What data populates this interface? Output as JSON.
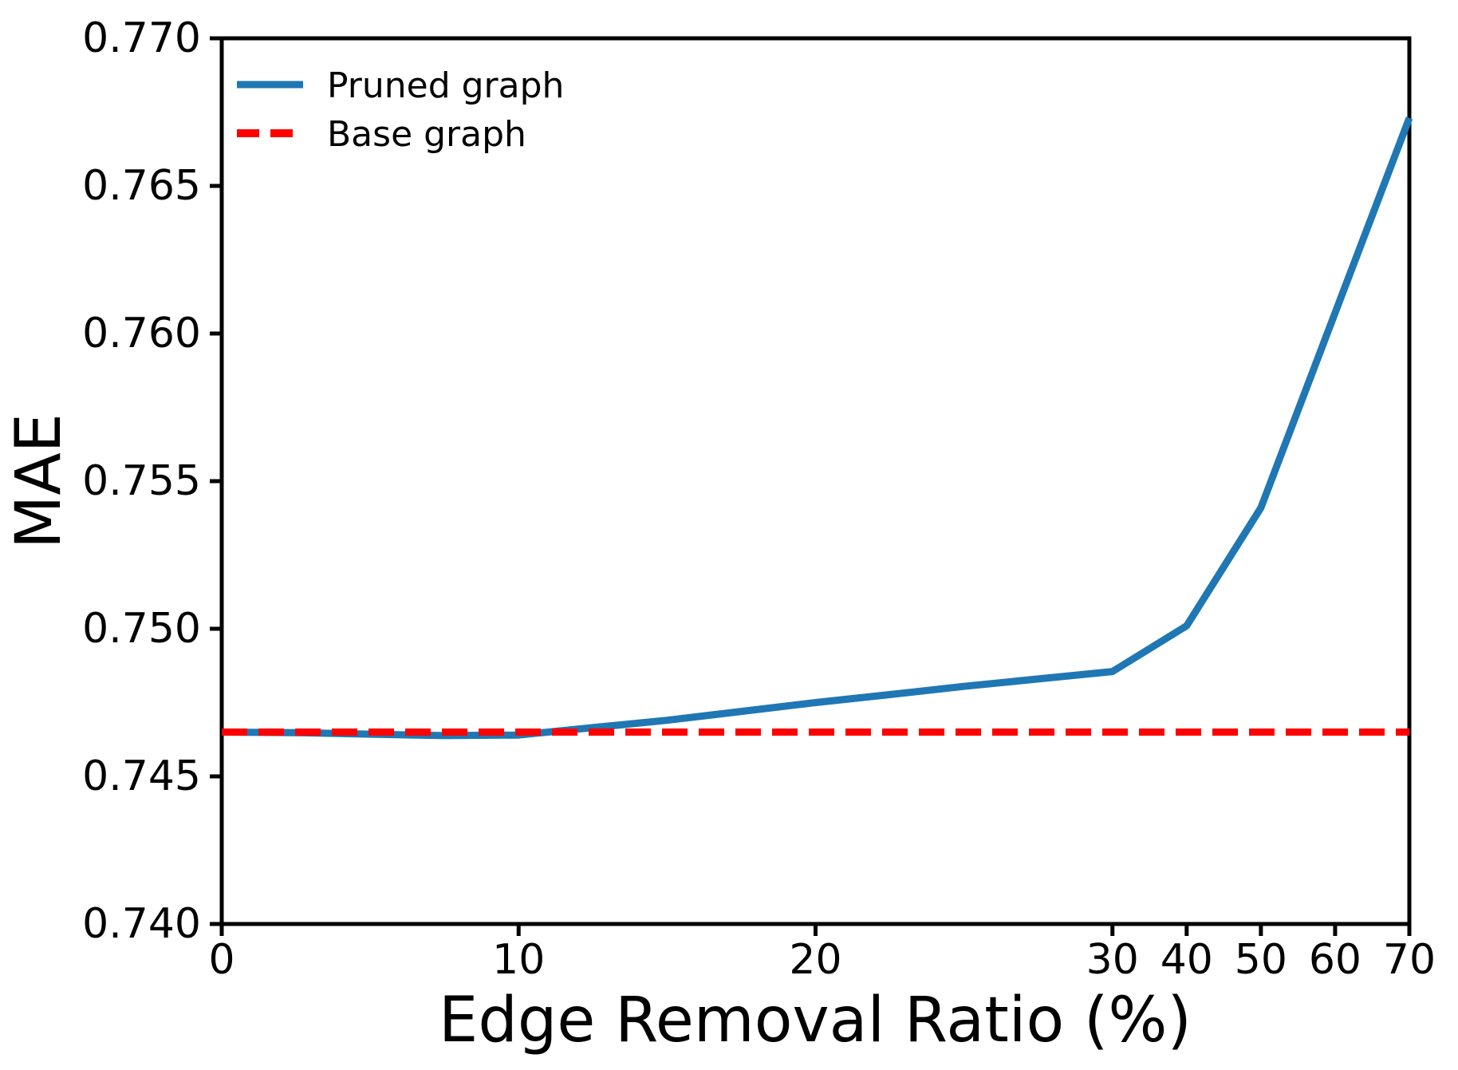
{
  "figure": {
    "background": "#ffffff",
    "text_color": "#000000"
  },
  "chart_data": {
    "type": "line",
    "title": "",
    "xlabel": "Edge Removal Ratio (%)",
    "ylabel": "MAE",
    "ylim": [
      0.74,
      0.77
    ],
    "grid": false,
    "legend_position": "upper left",
    "x_axis_note": "Non-linear x spacing: data points plotted at equal index intervals; ratios 0-30 sampled every 2.5, then 40, 50, 60, 70, so the 30-70 region is compressed.",
    "x_values": [
      0,
      2.5,
      5,
      7.5,
      10,
      12.5,
      15,
      17.5,
      20,
      22.5,
      25,
      27.5,
      30,
      40,
      50,
      60,
      70
    ],
    "series": [
      {
        "name": "Pruned graph",
        "color": "#1f77b4",
        "line_style": "solid",
        "values": [
          0.7465,
          0.74648,
          0.74643,
          0.74638,
          0.7464,
          0.74665,
          0.7469,
          0.7472,
          0.7475,
          0.74777,
          0.74805,
          0.7483,
          0.74855,
          0.7501,
          0.7541,
          0.7607,
          0.7673
        ]
      },
      {
        "name": "Base graph",
        "color": "#ff0000",
        "line_style": "dashed",
        "constant_value": 0.7465
      }
    ],
    "xticks": {
      "labels": [
        "0",
        "10",
        "20",
        "30",
        "40",
        "50",
        "60",
        "70"
      ],
      "at_x_values": [
        0,
        10,
        20,
        30,
        40,
        50,
        60,
        70
      ]
    },
    "yticks": {
      "labels": [
        "0.740",
        "0.745",
        "0.750",
        "0.755",
        "0.760",
        "0.765",
        "0.770"
      ],
      "values": [
        0.74,
        0.745,
        0.75,
        0.755,
        0.76,
        0.765,
        0.77
      ]
    }
  }
}
